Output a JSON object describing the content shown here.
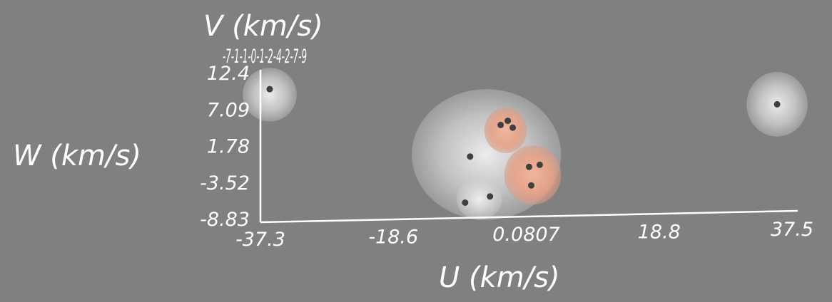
{
  "chart_data": {
    "type": "scatter",
    "title": "",
    "xlabel": "U (km/s)",
    "ylabel": "W (km/s)",
    "zlabel": "V (km/s)",
    "x_ticks": [
      "-37.3",
      "-18.6",
      "0.0807",
      "18.8",
      "37.5"
    ],
    "y_ticks": [
      "-8.83",
      "-3.52",
      "1.78",
      "7.09",
      "12.4"
    ],
    "xlim": [
      -37.3,
      37.5
    ],
    "ylim": [
      -8.83,
      12.4
    ],
    "z_ticks_illegible": "-7-1-1-0-1-2-4-2-7-9",
    "points": [
      {
        "u": -36.0,
        "w": 10.0
      },
      {
        "u": -7.8,
        "w": 0.2
      },
      {
        "u": -8.5,
        "w": -6.5
      },
      {
        "u": -5.0,
        "w": -5.6
      },
      {
        "u": -3.5,
        "w": 4.8
      },
      {
        "u": -2.5,
        "w": 5.4
      },
      {
        "u": -1.8,
        "w": 4.4
      },
      {
        "u": 0.5,
        "w": -1.3
      },
      {
        "u": 0.8,
        "w": -4.0
      },
      {
        "u": 2.0,
        "w": -1.0
      },
      {
        "u": 35.4,
        "w": 7.8
      }
    ],
    "density_blobs": [
      {
        "u": -36.0,
        "w": 9.2,
        "ru": 3.8,
        "rw": 3.9,
        "level": "low"
      },
      {
        "u": 35.4,
        "w": 7.8,
        "ru": 4.3,
        "rw": 4.7,
        "level": "low"
      },
      {
        "u": -5.5,
        "w": 0.5,
        "ru": 10.5,
        "rw": 9.5,
        "level": "low"
      },
      {
        "u": -6.5,
        "w": -6.0,
        "ru": 3.2,
        "rw": 3.0,
        "level": "low"
      },
      {
        "u": -2.8,
        "w": 4.0,
        "ru": 3.0,
        "rw": 3.3,
        "level": "high"
      },
      {
        "u": 1.0,
        "w": -2.5,
        "ru": 4.0,
        "rw": 4.3,
        "level": "high"
      }
    ],
    "grid": false,
    "legend": "none"
  },
  "colors": {
    "background": "#808080",
    "axis": "#ffffff",
    "point": "#3f3f3f",
    "low_density": "#dcdcdc",
    "high_density": "#e89a7c"
  }
}
